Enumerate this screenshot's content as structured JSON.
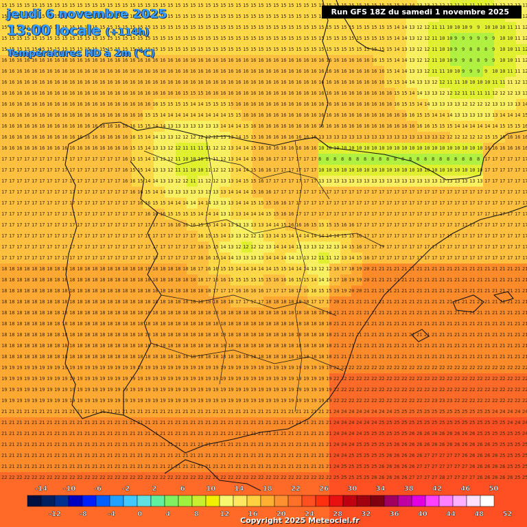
{
  "header": {
    "date_line": "jeudi 6 novembre 2025",
    "time_line": "13:00 locale",
    "lead_time": "(+114h)",
    "variable": "Températures HD à 2m (°C)",
    "run_info": "Run GFS 18Z du samedi 1 novembre 2025"
  },
  "legend": {
    "labels_top": [
      "-14",
      "-10",
      "-6",
      "-2",
      "2",
      "6",
      "10",
      "14",
      "18",
      "22",
      "26",
      "30",
      "34",
      "38",
      "42",
      "46",
      "50"
    ],
    "labels_bottom": [
      "-12",
      "-8",
      "-4",
      "0",
      "4",
      "8",
      "12",
      "16",
      "20",
      "24",
      "28",
      "32",
      "36",
      "40",
      "44",
      "48",
      "52"
    ],
    "colors": [
      "#001040",
      "#002060",
      "#003090",
      "#0000c0",
      "#0020ff",
      "#0060ff",
      "#20a0ff",
      "#40c8ff",
      "#60e0e0",
      "#60f0a0",
      "#80f060",
      "#a0f040",
      "#c8f030",
      "#f0f000",
      "#f8f870",
      "#ffe860",
      "#ffd040",
      "#ffb030",
      "#ff9030",
      "#ff7028",
      "#ff5020",
      "#ff3010",
      "#e81010",
      "#c00010",
      "#a00010",
      "#800010",
      "#a00060",
      "#c000a0",
      "#e000e0",
      "#ff40ff",
      "#ff80ff",
      "#ffb0ff",
      "#ffe0ff",
      "#ffffff"
    ]
  },
  "copyright": "Copyright 2025 Meteociel.fr"
}
